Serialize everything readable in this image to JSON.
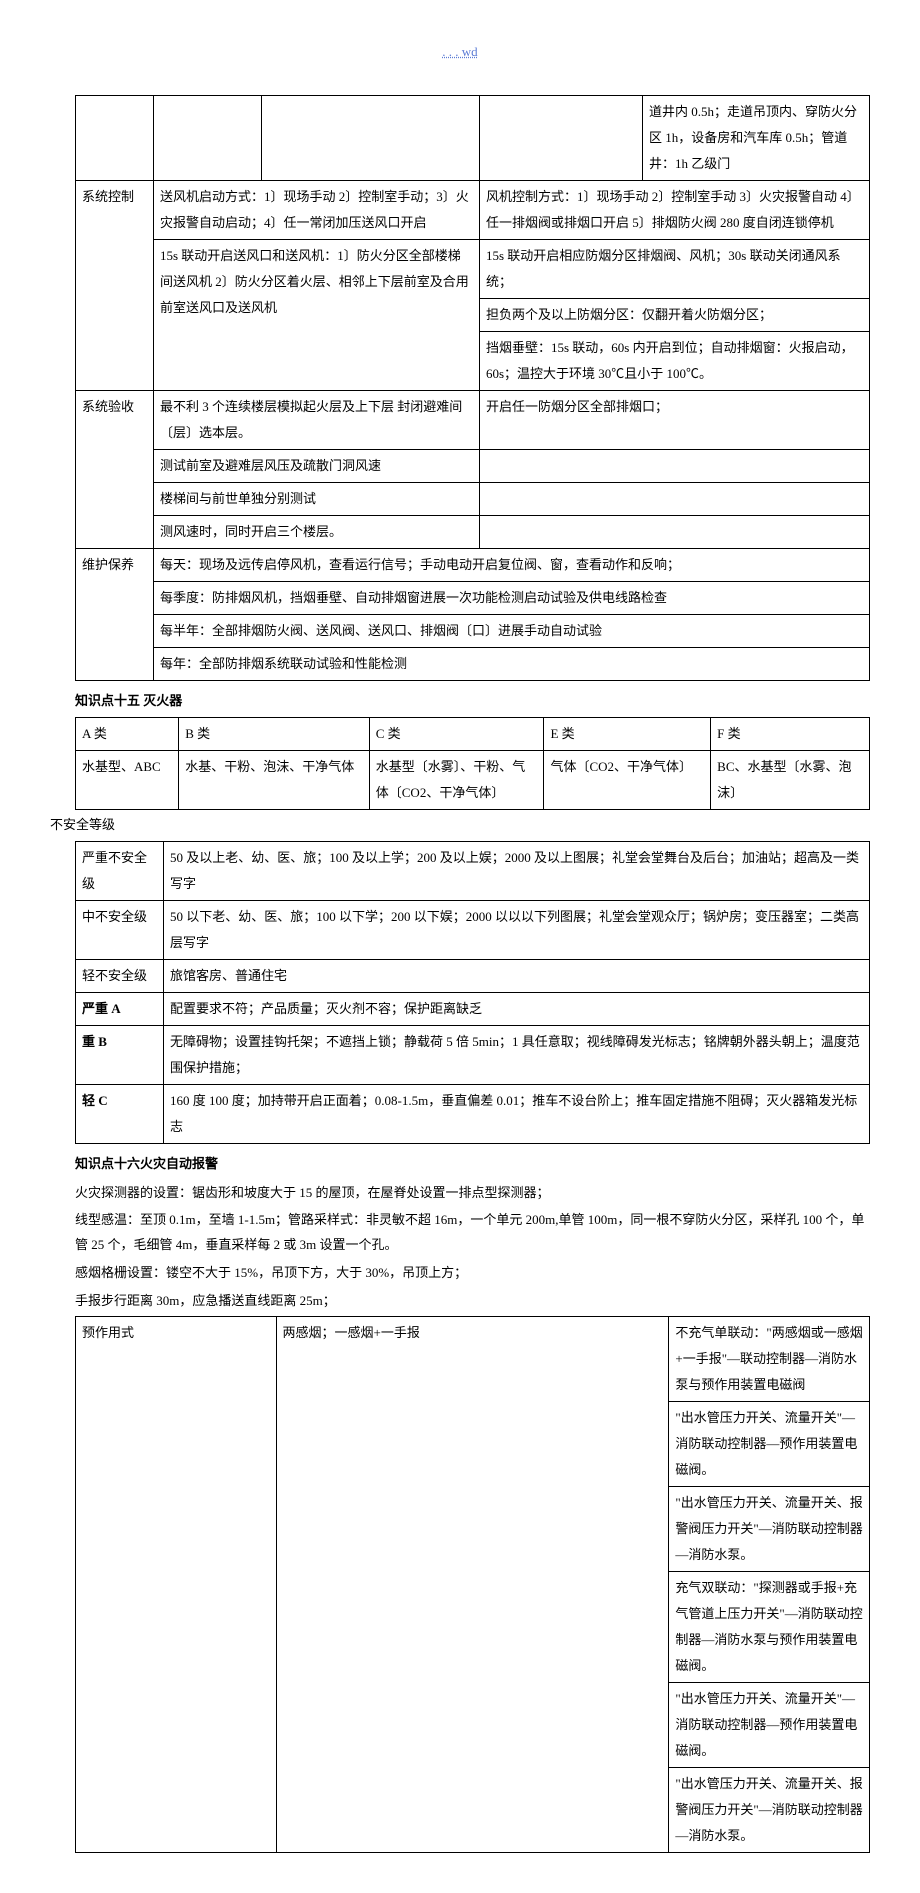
{
  "header": ". . . wd",
  "table1": {
    "r0": {
      "c5": "道井内 0.5h；走道吊顶内、穿防火分区 1h，设备房和汽车库 0.5h；管道井：1h 乙级门"
    },
    "r1": {
      "c1": "系统控制",
      "c2a": "送风机启动方式：1〕现场手动 2〕控制室手动；3〕火灾报警自动启动；4〕任一常闭加压送风口开启",
      "c4a": "风机控制方式：1〕现场手动 2〕控制室手动 3〕火灾报警自动 4〕任一排烟阀或排烟口开启 5〕排烟防火阀 280 度自闭连锁停机"
    },
    "r2": {
      "c2a": "15s 联动开启送风口和送风机：1〕防火分区全部楼梯间送风机 2〕防火分区着火层、相邻上下层前室及合用前室送风口及送风机",
      "c4a": "15s 联动开启相应防烟分区排烟阀、风机；30s 联动关闭通风系统；",
      "c4b": "担负两个及以上防烟分区：仅翻开着火防烟分区；",
      "c4c": "挡烟垂壁：15s 联动，60s 内开启到位；自动排烟窗：火报启动，60s；温控大于环境 30℃且小于 100℃。"
    },
    "r3": {
      "c1": "系统验收",
      "c2a": "最不利 3 个连续楼层模拟起火层及上下层 封闭避难间〔层〕选本层。",
      "c2b": "测试前室及避难层风压及疏散门洞风速",
      "c2c": "楼梯间与前世单独分别测试",
      "c2d": "测风速时，同时开启三个楼层。",
      "c4a": "开启任一防烟分区全部排烟口；"
    },
    "r4": {
      "c1": "维护保养",
      "c2a": "每天：现场及远传启停风机，查看运行信号；手动电动开启复位阀、窗，查看动作和反响；",
      "c2b": "每季度：防排烟风机，挡烟垂壁、自动排烟窗进展一次功能检测启动试验及供电线路检查",
      "c2c": "每半年：全部排烟防火阀、送风阀、送风口、排烟阀〔口〕进展手动自动试验",
      "c2d": "每年：全部防排烟系统联动试验和性能检测"
    }
  },
  "kp15_title": "知识点十五 灭火器",
  "table2": {
    "h": [
      "A 类",
      "B 类",
      "C 类",
      "E 类",
      "F 类"
    ],
    "r": [
      "水基型、ABC",
      "水基、干粉、泡沫、干净气体",
      "水基型〔水雾〕、干粉、气体〔CO2、干净气体〕",
      "气体〔CO2、干净气体〕",
      "BC、水基型〔水雾、泡沫〕"
    ]
  },
  "unsafe_title": "不安全等级",
  "table3": {
    "rows": [
      [
        "严重不安全级",
        "50 及以上老、幼、医、旅；100 及以上学；200 及以上娱；2000 及以上图展；礼堂会堂舞台及后台；加油站；超高及一类写字"
      ],
      [
        "中不安全级",
        "50 以下老、幼、医、旅；100 以下学；200 以下娱；2000 以以以下列图展；礼堂会堂观众厅；锅炉房；变压器室；二类高层写字"
      ],
      [
        "轻不安全级",
        "旅馆客房、普通住宅"
      ],
      [
        "严重 A",
        "配置要求不符；产品质量；灭火剂不容；保护距离缺乏"
      ],
      [
        "重 B",
        "无障碍物；设置挂钩托架；不遮挡上锁；静载荷 5 倍 5min；1 具任意取；视线障碍发光标志；铭牌朝外器头朝上；温度范围保护措施；"
      ],
      [
        "轻 C",
        "160 度 100 度；加持带开启正面着；0.08-1.5m，垂直偏差 0.01；推车不设台阶上；推车固定措施不阻碍；灭火器箱发光标志"
      ]
    ],
    "bold_rows": [
      3,
      4,
      5
    ]
  },
  "kp16_title": "知识点十六火灾自动报警",
  "p1": "火灾探测器的设置：锯齿形和坡度大于 15 的屋顶，在屋脊处设置一排点型探测器；",
  "p2": "线型感温：至顶 0.1m，至墙 1-1.5m；管路采样式：非灵敏不超 16m，一个单元 200m,单管 100m，同一根不穿防火分区，采样孔 100 个，单管 25 个，毛细管 4m，垂直采样每 2 或 3m 设置一个孔。",
  "p3": "感烟格栅设置：镂空不大于 15%，吊顶下方，大于 30%，吊顶上方；",
  "p4": "手报步行距离 30m，应急播送直线距离 25m；",
  "table4": {
    "r1c1": "预作用式",
    "r1c2": "两感烟；一感烟+一手报",
    "r1c3": "不充气单联动：\"两感烟或一感烟+一手报\"—联动控制器—消防水泵与预作用装置电磁阀",
    "r2": "\"出水管压力开关、流量开关\"—消防联动控制器—预作用装置电磁阀。",
    "r3": "\"出水管压力开关、流量开关、报警阀压力开关\"—消防联动控制器—消防水泵。",
    "r4": "充气双联动：\"探测器或手报+充气管道上压力开关\"—消防联动控制器—消防水泵与预作用装置电磁阀。",
    "r5": "\"出水管压力开关、流量开关\"—消防联动控制器—预作用装置电磁阀。",
    "r6": "\"出水管压力开关、流量开关、报警阀压力开关\"—消防联动控制器—消防水泵。"
  }
}
